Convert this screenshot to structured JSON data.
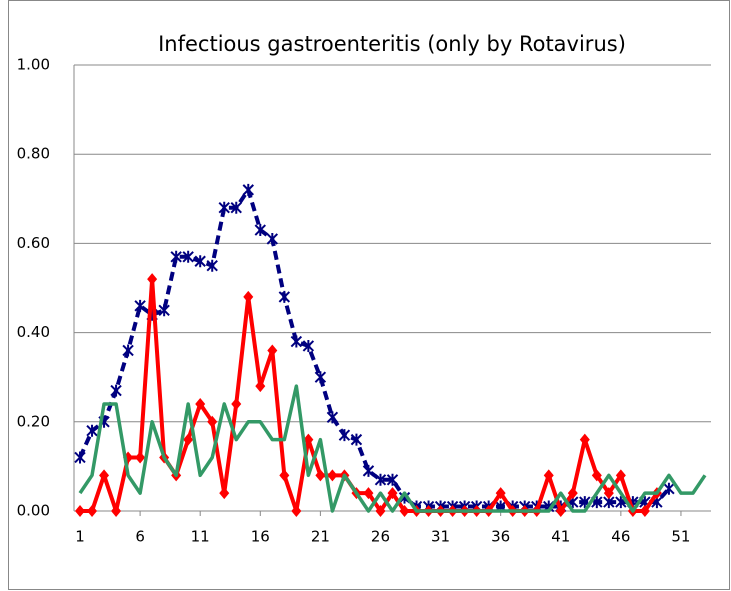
{
  "chart_data": {
    "type": "line",
    "title": "Infectious gastroenteritis (only by Rotavirus)",
    "x": [
      1,
      2,
      3,
      4,
      5,
      6,
      7,
      8,
      9,
      10,
      11,
      12,
      13,
      14,
      15,
      16,
      17,
      18,
      19,
      20,
      21,
      22,
      23,
      24,
      25,
      26,
      27,
      28,
      29,
      30,
      31,
      32,
      33,
      34,
      35,
      36,
      37,
      38,
      39,
      40,
      41,
      42,
      43,
      44,
      45,
      46,
      47,
      48,
      49,
      50,
      51,
      52,
      53
    ],
    "xlim": [
      0.5,
      53.5
    ],
    "xticks": [
      1,
      6,
      11,
      16,
      21,
      26,
      31,
      36,
      41,
      46,
      51
    ],
    "ylim": [
      0,
      1
    ],
    "yticks": [
      {
        "value": 0,
        "label": "0.00"
      },
      {
        "value": 0.2,
        "label": "0.20"
      },
      {
        "value": 0.4,
        "label": "0.40"
      },
      {
        "value": 0.6,
        "label": "0.60"
      },
      {
        "value": 0.8,
        "label": "0.80"
      },
      {
        "value": 1,
        "label": "1.00"
      }
    ],
    "grid": true,
    "series": [
      {
        "color": "#000080",
        "values": [
          0.12,
          0.18,
          0.2,
          0.27,
          0.36,
          0.46,
          0.44,
          0.45,
          0.57,
          0.57,
          0.56,
          0.55,
          0.68,
          0.68,
          0.72,
          0.63,
          0.61,
          0.48,
          0.38,
          0.37,
          0.3,
          0.21,
          0.17,
          0.16,
          0.09,
          0.07,
          0.07,
          0.03,
          0.01,
          0.01,
          0.01,
          0.01,
          0.01,
          0.01,
          0.01,
          0.01,
          0.01,
          0.01,
          0.01,
          0.01,
          0.01,
          0.02,
          0.02,
          0.02,
          0.02,
          0.02,
          0.02,
          0.02,
          0.02,
          0.05,
          null,
          null,
          null
        ]
      },
      {
        "color": "#ff0000",
        "values": [
          0,
          0,
          0.08,
          0,
          0.12,
          0.12,
          0.52,
          0.12,
          0.08,
          0.16,
          0.24,
          0.2,
          0.04,
          0.24,
          0.48,
          0.28,
          0.36,
          0.08,
          0,
          0.16,
          0.08,
          0.08,
          0.08,
          0.04,
          0.04,
          0,
          0.04,
          0,
          0,
          0,
          0,
          0,
          0,
          0,
          0,
          0.04,
          0,
          0,
          0,
          0.08,
          0,
          0.04,
          0.16,
          0.08,
          0.04,
          0.08,
          0,
          0,
          0.04,
          null,
          null,
          null,
          null
        ]
      },
      {
        "color": "#339966",
        "values": [
          0.04,
          0.08,
          0.24,
          0.24,
          0.08,
          0.04,
          0.2,
          0.12,
          0.08,
          0.24,
          0.08,
          0.12,
          0.24,
          0.16,
          0.2,
          0.2,
          0.16,
          0.16,
          0.28,
          0.08,
          0.16,
          0,
          0.08,
          0.04,
          0,
          0.04,
          0,
          0.04,
          0,
          0,
          0,
          0,
          0,
          0,
          0,
          0,
          0,
          0,
          0,
          0,
          0.04,
          0,
          0,
          0.04,
          0.08,
          0.04,
          0,
          0.04,
          0.04,
          0.08,
          0.04,
          0.04,
          0.08
        ]
      }
    ]
  }
}
